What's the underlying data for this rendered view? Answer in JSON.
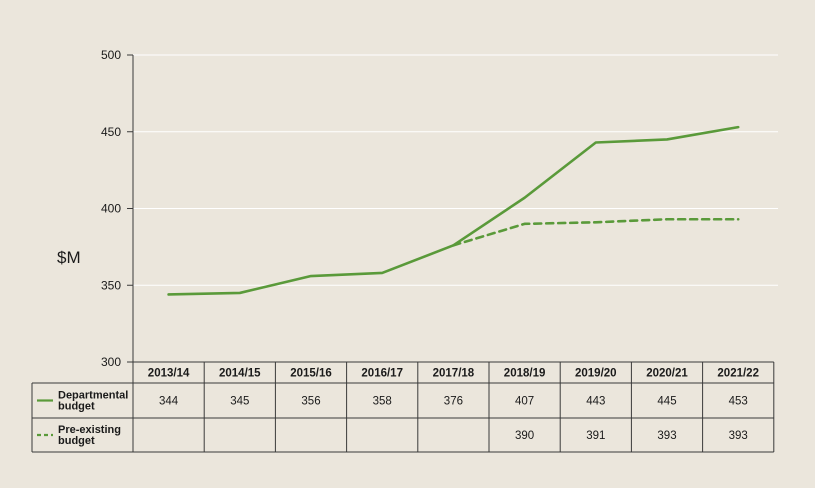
{
  "chart_data": {
    "type": "line",
    "ylabel": "$M",
    "ylim": [
      300,
      500
    ],
    "yticks": [
      300,
      350,
      400,
      450,
      500
    ],
    "categories": [
      "2013/14",
      "2014/15",
      "2015/16",
      "2016/17",
      "2017/18",
      "2018/19",
      "2019/20",
      "2020/21",
      "2021/22"
    ],
    "series": [
      {
        "name": "Departmental budget",
        "style": "solid",
        "color": "#5a9a3a",
        "values": [
          344,
          345,
          356,
          358,
          376,
          407,
          443,
          445,
          453
        ]
      },
      {
        "name": "Pre-existing budget",
        "style": "dashed",
        "color": "#5a9a3a",
        "values": [
          null,
          null,
          null,
          null,
          376,
          390,
          391,
          393,
          393
        ],
        "table_values": [
          null,
          null,
          null,
          null,
          null,
          390,
          391,
          393,
          393
        ]
      }
    ],
    "grid": true,
    "legend": "table-left"
  }
}
